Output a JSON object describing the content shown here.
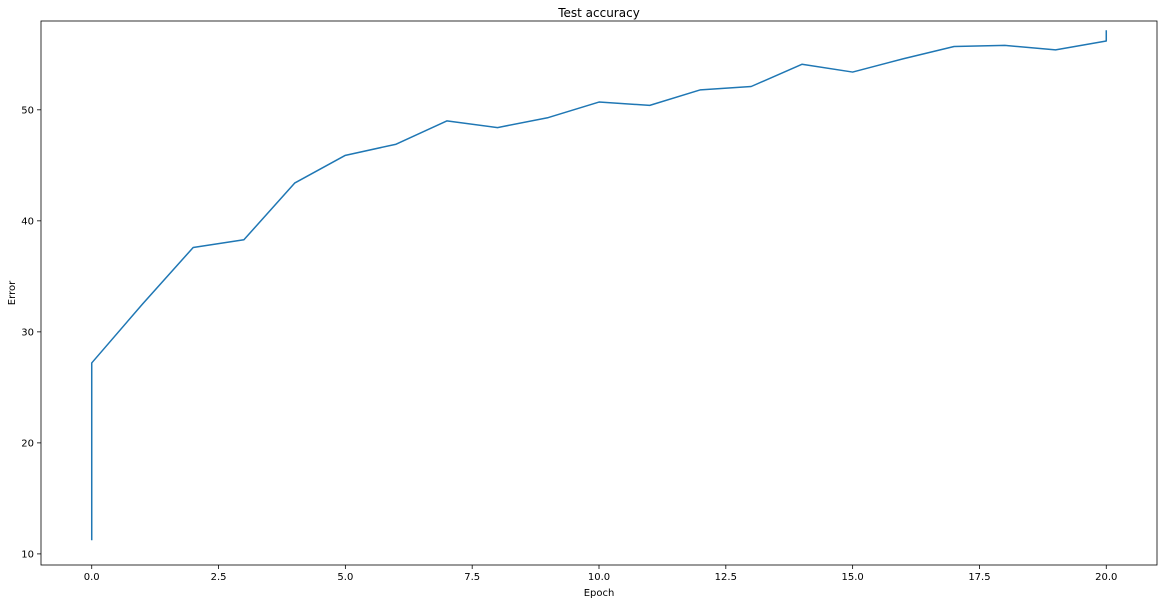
{
  "chart_data": {
    "type": "line",
    "title": "Test accuracy",
    "xlabel": "Epoch",
    "ylabel": "Error",
    "xlim": [
      -1.0,
      21.0
    ],
    "ylim": [
      9.0,
      58.0
    ],
    "grid": false,
    "xticks": [
      0.0,
      2.5,
      5.0,
      7.5,
      10.0,
      12.5,
      15.0,
      17.5,
      20.0
    ],
    "xtick_labels": [
      "0.0",
      "2.5",
      "5.0",
      "7.5",
      "10.0",
      "12.5",
      "15.0",
      "17.5",
      "20.0"
    ],
    "yticks": [
      10,
      20,
      30,
      40,
      50
    ],
    "ytick_labels": [
      "10",
      "20",
      "30",
      "40",
      "50"
    ],
    "series": [
      {
        "color": "#1f77b4",
        "x": [
          0,
          0,
          0,
          1,
          2,
          3,
          4,
          5,
          6,
          7,
          8,
          9,
          10,
          11,
          12,
          13,
          14,
          15,
          16,
          17,
          18,
          19,
          20,
          20
        ],
        "y": [
          11.3,
          27.0,
          27.2,
          32.5,
          37.6,
          38.3,
          43.4,
          45.9,
          46.9,
          49.0,
          48.4,
          49.3,
          50.7,
          50.4,
          51.8,
          52.1,
          54.1,
          53.4,
          54.6,
          55.7,
          55.8,
          55.4,
          56.2,
          57.1
        ]
      }
    ]
  }
}
